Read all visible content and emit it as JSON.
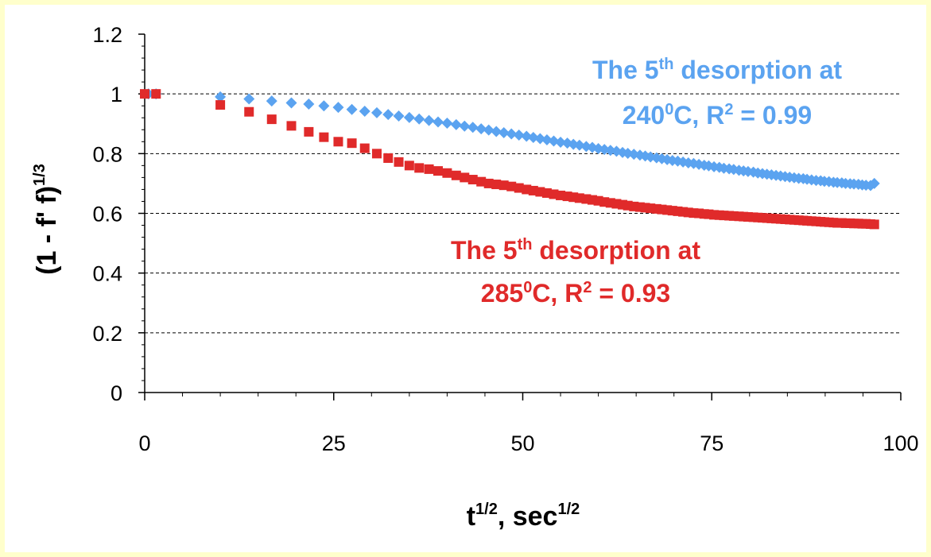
{
  "chart_data": {
    "type": "scatter",
    "xlabel": {
      "base": "t",
      "sup1": "1/2",
      "mid": ", sec",
      "sup2": "1/2"
    },
    "ylabel": {
      "base": "(1 - f' f)",
      "sup": "1/3"
    },
    "xlim": [
      0,
      100
    ],
    "ylim": [
      0,
      1.2
    ],
    "xticks": [
      0,
      25,
      50,
      75,
      100
    ],
    "xtick_labels": [
      "0",
      "25",
      "50",
      "75",
      "100"
    ],
    "yticks": [
      0,
      0.2,
      0.4,
      0.6,
      0.8,
      1,
      1.2
    ],
    "ytick_labels": [
      "0",
      "0.2",
      "0.4",
      "0.6",
      "0.8",
      "1",
      "1.2"
    ],
    "grid": "horizontal dashed",
    "series": [
      {
        "color": "#5ba3f0",
        "marker": "diamond",
        "x": [
          0.5,
          1.5,
          10,
          13.8,
          16.8,
          19.4,
          21.7,
          23.7,
          25.6,
          27.4,
          29.1,
          30.7,
          32.2,
          33.6,
          35,
          36.3,
          37.6,
          38.8,
          40,
          41.2,
          42.3,
          43.4,
          44.5,
          45.5,
          46.5,
          47.5,
          48.5,
          49.5,
          50.5,
          51.4,
          52.3,
          53.2,
          54.1,
          55,
          55.9,
          56.7,
          57.5,
          58.4,
          59.2,
          60,
          60.8,
          61.6,
          62.4,
          63.2,
          63.9,
          64.7,
          65.5,
          66.2,
          66.9,
          67.7,
          68.4,
          69.1,
          69.8,
          70.5,
          71.2,
          71.9,
          72.6,
          73.3,
          74,
          74.6,
          75.3,
          76,
          76.6,
          77.3,
          77.9,
          78.6,
          79.2,
          79.8,
          80.5,
          81.1,
          81.7,
          82.3,
          82.9,
          83.5,
          84.1,
          84.7,
          85.3,
          85.9,
          86.5,
          87.1,
          87.6,
          88.2,
          88.8,
          89.4,
          89.9,
          90.5,
          91.1,
          91.6,
          92.2,
          92.7,
          93.3,
          93.8,
          94.4,
          94.9,
          95.4,
          96,
          96.5
        ],
        "y": [
          1.0,
          1.0,
          0.99,
          0.983,
          0.976,
          0.97,
          0.966,
          0.96,
          0.955,
          0.948,
          0.942,
          0.937,
          0.931,
          0.926,
          0.921,
          0.916,
          0.911,
          0.906,
          0.902,
          0.897,
          0.892,
          0.888,
          0.883,
          0.879,
          0.874,
          0.87,
          0.866,
          0.862,
          0.858,
          0.854,
          0.85,
          0.846,
          0.842,
          0.838,
          0.835,
          0.831,
          0.828,
          0.824,
          0.821,
          0.817,
          0.814,
          0.811,
          0.808,
          0.804,
          0.801,
          0.798,
          0.795,
          0.792,
          0.789,
          0.786,
          0.783,
          0.78,
          0.777,
          0.775,
          0.772,
          0.769,
          0.767,
          0.764,
          0.761,
          0.759,
          0.756,
          0.754,
          0.751,
          0.749,
          0.747,
          0.744,
          0.742,
          0.74,
          0.738,
          0.735,
          0.733,
          0.731,
          0.729,
          0.727,
          0.725,
          0.723,
          0.721,
          0.719,
          0.717,
          0.716,
          0.714,
          0.712,
          0.71,
          0.709,
          0.707,
          0.706,
          0.704,
          0.703,
          0.702,
          0.7,
          0.699,
          0.698,
          0.697,
          0.695,
          0.694,
          0.693,
          0.7
        ]
      },
      {
        "color": "#e02a2a",
        "marker": "square",
        "x": [
          0,
          1.5,
          10,
          13.8,
          16.8,
          19.4,
          21.7,
          23.7,
          25.6,
          27.4,
          29.1,
          30.7,
          32.2,
          33.6,
          35,
          36.3,
          37.6,
          38.8,
          40,
          41.2,
          42.3,
          43.4,
          44.5,
          45.5,
          46.5,
          47.5,
          48.5,
          49.5,
          50.5,
          51.4,
          52.3,
          53.2,
          54.1,
          55,
          55.9,
          56.7,
          57.5,
          58.4,
          59.2,
          60,
          60.8,
          61.6,
          62.4,
          63.2,
          63.9,
          64.7,
          65.5,
          66.2,
          66.9,
          67.7,
          68.4,
          69.1,
          69.8,
          70.5,
          71.2,
          71.9,
          72.6,
          73.3,
          74,
          74.6,
          75.3,
          76,
          76.6,
          77.3,
          77.9,
          78.6,
          79.2,
          79.8,
          80.5,
          81.1,
          81.7,
          82.3,
          82.9,
          83.5,
          84.1,
          84.7,
          85.3,
          85.9,
          86.5,
          87.1,
          87.6,
          88.2,
          88.8,
          89.4,
          89.9,
          90.5,
          91.1,
          91.6,
          92.2,
          92.7,
          93.3,
          93.8,
          94.4,
          94.9,
          95.4,
          96,
          96.5
        ],
        "y": [
          1.0,
          1.0,
          0.963,
          0.94,
          0.915,
          0.893,
          0.873,
          0.855,
          0.84,
          0.835,
          0.818,
          0.8,
          0.785,
          0.772,
          0.76,
          0.752,
          0.748,
          0.742,
          0.735,
          0.727,
          0.72,
          0.713,
          0.706,
          0.7,
          0.697,
          0.694,
          0.69,
          0.685,
          0.68,
          0.676,
          0.672,
          0.668,
          0.664,
          0.66,
          0.657,
          0.654,
          0.651,
          0.648,
          0.645,
          0.642,
          0.638,
          0.635,
          0.632,
          0.629,
          0.626,
          0.623,
          0.621,
          0.619,
          0.617,
          0.615,
          0.613,
          0.611,
          0.609,
          0.607,
          0.605,
          0.603,
          0.601,
          0.6,
          0.598,
          0.597,
          0.595,
          0.594,
          0.593,
          0.592,
          0.591,
          0.59,
          0.589,
          0.588,
          0.587,
          0.586,
          0.585,
          0.584,
          0.583,
          0.582,
          0.581,
          0.58,
          0.579,
          0.578,
          0.577,
          0.576,
          0.575,
          0.574,
          0.573,
          0.572,
          0.571,
          0.57,
          0.569,
          0.568,
          0.568,
          0.567,
          0.567,
          0.566,
          0.566,
          0.565,
          0.565,
          0.564,
          0.563
        ]
      }
    ],
    "annotations": [
      {
        "color": "#5ba3f0",
        "line1": {
          "a": "The 5",
          "sup": "th",
          "b": " desorption at"
        },
        "line2": {
          "a": "240",
          "sup": "0",
          "b": "C, R",
          "sup2": "2",
          "c": " = 0.99"
        }
      },
      {
        "color": "#e02a2a",
        "line1": {
          "a": "The 5",
          "sup": "th",
          "b": " desorption at"
        },
        "line2": {
          "a": "285",
          "sup": "0",
          "b": "C, R",
          "sup2": "2",
          "c": " = 0.93"
        }
      }
    ]
  }
}
